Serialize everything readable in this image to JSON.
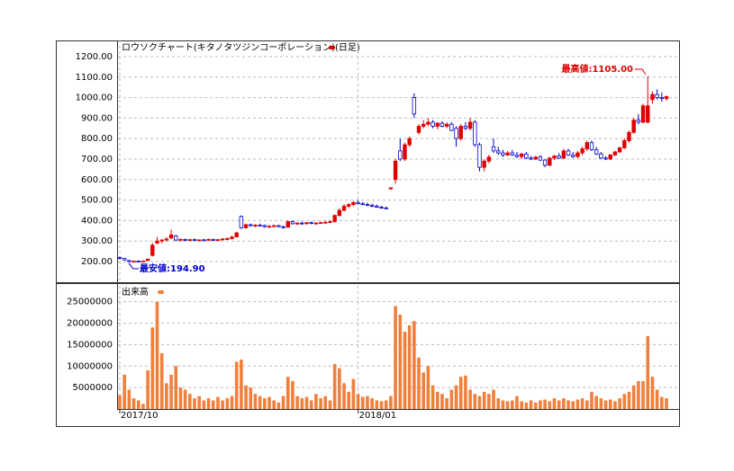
{
  "chart_data": {
    "type": "candlestick",
    "title": "ロウソクチャート(キタノタツジンコーポレーション)(日足)",
    "volume_title": "出来高",
    "low_annotation": "最安値:194.90",
    "high_annotation": "最高値:1105.00",
    "up_color": "#e00000",
    "down_color": "#0000cc",
    "volume_color": "#f07f3c",
    "grid": true,
    "categories": [
      "2017/10",
      null,
      null,
      null,
      null,
      null,
      null,
      null,
      null,
      null,
      null,
      null,
      null,
      null,
      null,
      null,
      null,
      null,
      null,
      null,
      null,
      null,
      null,
      null,
      null,
      null,
      null,
      null,
      null,
      null,
      null,
      null,
      null,
      null,
      null,
      null,
      null,
      null,
      null,
      null,
      null,
      null,
      null,
      null,
      null,
      null,
      null,
      null,
      null,
      null,
      null,
      "2018/01",
      null,
      null,
      null,
      null,
      null,
      null,
      null,
      null,
      null,
      null,
      null,
      null,
      null,
      null,
      null,
      null,
      null,
      null,
      null,
      null,
      null,
      null,
      null,
      null,
      null,
      null,
      null,
      null,
      null,
      null,
      null,
      null,
      null,
      null,
      null,
      null,
      null,
      null,
      null,
      null,
      null,
      null,
      null,
      null,
      null,
      null,
      null,
      null,
      null,
      null,
      null,
      null,
      null,
      null,
      null,
      null,
      null,
      null,
      null,
      null,
      null,
      null,
      null,
      null,
      null,
      null
    ],
    "open": [
      220,
      215,
      205,
      200,
      202,
      200,
      205,
      230,
      290,
      300,
      305,
      315,
      325,
      305,
      308,
      305,
      307,
      303,
      306,
      305,
      308,
      304,
      307,
      310,
      312,
      320,
      420,
      365,
      380,
      375,
      378,
      376,
      370,
      372,
      375,
      370,
      368,
      395,
      385,
      388,
      385,
      390,
      386,
      388,
      390,
      392,
      395,
      425,
      450,
      470,
      478,
      488,
      482,
      478,
      475,
      470,
      465,
      462,
      555,
      600,
      740,
      700,
      770,
      1000,
      830,
      860,
      870,
      880,
      860,
      875,
      860,
      870,
      850,
      800,
      860,
      850,
      880,
      770,
      660,
      690,
      760,
      740,
      730,
      720,
      730,
      720,
      712,
      725,
      705,
      700,
      710,
      695,
      670,
      705,
      715,
      705,
      740,
      720,
      712,
      730,
      750,
      780,
      745,
      725,
      705,
      700,
      720,
      735,
      755,
      790,
      830,
      890,
      880,
      880,
      990,
      1015,
      1000,
      995
    ],
    "high": [
      225,
      218,
      208,
      205,
      206,
      204,
      215,
      290,
      320,
      310,
      320,
      355,
      330,
      312,
      312,
      310,
      312,
      308,
      310,
      312,
      312,
      310,
      315,
      318,
      325,
      345,
      425,
      385,
      385,
      382,
      385,
      380,
      378,
      380,
      380,
      375,
      400,
      400,
      392,
      395,
      392,
      395,
      392,
      395,
      398,
      400,
      430,
      460,
      480,
      485,
      495,
      500,
      490,
      488,
      482,
      478,
      472,
      468,
      560,
      700,
      800,
      780,
      810,
      1020,
      870,
      890,
      900,
      890,
      880,
      885,
      880,
      880,
      860,
      870,
      880,
      900,
      890,
      780,
      700,
      720,
      800,
      760,
      745,
      740,
      745,
      735,
      730,
      735,
      715,
      715,
      720,
      700,
      710,
      720,
      730,
      750,
      750,
      735,
      740,
      760,
      790,
      790,
      760,
      735,
      715,
      725,
      740,
      760,
      800,
      840,
      900,
      920,
      970,
      1105,
      1030,
      1040,
      1025,
      1010
    ],
    "low": [
      210,
      205,
      194.9,
      197,
      198,
      197,
      203,
      225,
      285,
      290,
      298,
      310,
      300,
      298,
      300,
      300,
      300,
      298,
      300,
      302,
      300,
      300,
      303,
      305,
      308,
      318,
      360,
      360,
      370,
      368,
      372,
      365,
      365,
      368,
      368,
      362,
      365,
      380,
      378,
      380,
      380,
      382,
      380,
      384,
      385,
      388,
      390,
      420,
      445,
      460,
      470,
      478,
      475,
      470,
      465,
      462,
      458,
      455,
      550,
      580,
      690,
      690,
      760,
      900,
      820,
      850,
      860,
      850,
      845,
      855,
      850,
      835,
      760,
      790,
      840,
      840,
      760,
      640,
      640,
      680,
      730,
      720,
      710,
      715,
      715,
      705,
      700,
      700,
      695,
      695,
      690,
      660,
      665,
      695,
      700,
      700,
      715,
      705,
      705,
      720,
      740,
      740,
      720,
      700,
      695,
      695,
      715,
      730,
      750,
      780,
      825,
      870,
      875,
      875,
      970,
      990,
      980,
      985
    ],
    "close": [
      215,
      208,
      200,
      202,
      200,
      203,
      212,
      280,
      300,
      305,
      310,
      330,
      305,
      308,
      305,
      307,
      303,
      306,
      305,
      308,
      304,
      307,
      310,
      312,
      320,
      340,
      365,
      380,
      375,
      378,
      376,
      370,
      372,
      375,
      370,
      368,
      395,
      385,
      388,
      385,
      390,
      386,
      388,
      390,
      392,
      395,
      425,
      450,
      470,
      478,
      488,
      482,
      478,
      475,
      470,
      465,
      462,
      458,
      560,
      690,
      700,
      770,
      800,
      920,
      860,
      870,
      880,
      860,
      875,
      860,
      870,
      840,
      800,
      860,
      850,
      880,
      770,
      660,
      690,
      710,
      740,
      730,
      720,
      730,
      720,
      712,
      725,
      705,
      700,
      710,
      695,
      670,
      705,
      715,
      705,
      740,
      720,
      712,
      730,
      750,
      780,
      745,
      725,
      705,
      700,
      720,
      735,
      755,
      790,
      830,
      890,
      880,
      960,
      960,
      1015,
      1000,
      995,
      1005
    ],
    "volume": [
      3200000,
      8000000,
      4500000,
      2500000,
      2000000,
      1200000,
      9000000,
      19000000,
      25000000,
      13000000,
      6000000,
      8000000,
      10000000,
      5000000,
      4500000,
      3500000,
      2500000,
      3000000,
      2000000,
      2500000,
      2000000,
      2800000,
      2000000,
      2500000,
      3000000,
      11000000,
      11500000,
      5500000,
      5000000,
      3500000,
      3000000,
      2500000,
      2800000,
      2000000,
      1500000,
      3000000,
      7500000,
      6500000,
      3000000,
      2500000,
      2800000,
      2000000,
      3500000,
      2500000,
      3000000,
      2000000,
      10500000,
      9500000,
      6000000,
      4000000,
      7000000,
      3500000,
      2800000,
      3000000,
      2500000,
      2000000,
      1800000,
      2000000,
      3000000,
      24000000,
      22000000,
      18000000,
      19500000,
      20500000,
      12000000,
      8500000,
      10000000,
      5500000,
      4000000,
      3500000,
      2500000,
      4500000,
      5500000,
      7500000,
      7800000,
      4500000,
      3500000,
      3000000,
      4000000,
      3500000,
      4500000,
      2500000,
      2000000,
      1800000,
      2000000,
      3000000,
      1800000,
      1500000,
      2000000,
      1500000,
      2000000,
      2200000,
      1800000,
      2500000,
      2000000,
      2500000,
      2000000,
      1800000,
      2200000,
      2500000,
      2000000,
      4000000,
      3000000,
      2500000,
      2000000,
      2200000,
      1800000,
      2500000,
      3500000,
      4000000,
      5500000,
      6500000,
      6500000,
      17000000,
      7500000,
      4500000,
      2800000,
      2500000
    ],
    "ylim": [
      103.5,
      1270
    ],
    "yticks": [
      {
        "value": 200,
        "label": "200.00"
      },
      {
        "value": 300,
        "label": "300.00"
      },
      {
        "value": 400,
        "label": "400.00"
      },
      {
        "value": 500,
        "label": "500.00"
      },
      {
        "value": 600,
        "label": "600.00"
      },
      {
        "value": 700,
        "label": "700.00"
      },
      {
        "value": 800,
        "label": "800.00"
      },
      {
        "value": 900,
        "label": "900.00"
      },
      {
        "value": 1000,
        "label": "1000.00"
      },
      {
        "value": 1100,
        "label": "1100.00"
      },
      {
        "value": 1200,
        "label": "1200.00"
      }
    ],
    "volume_ylim": [
      0,
      28700000
    ],
    "volume_yticks": [
      5000000,
      10000000,
      15000000,
      20000000,
      25000000
    ]
  }
}
